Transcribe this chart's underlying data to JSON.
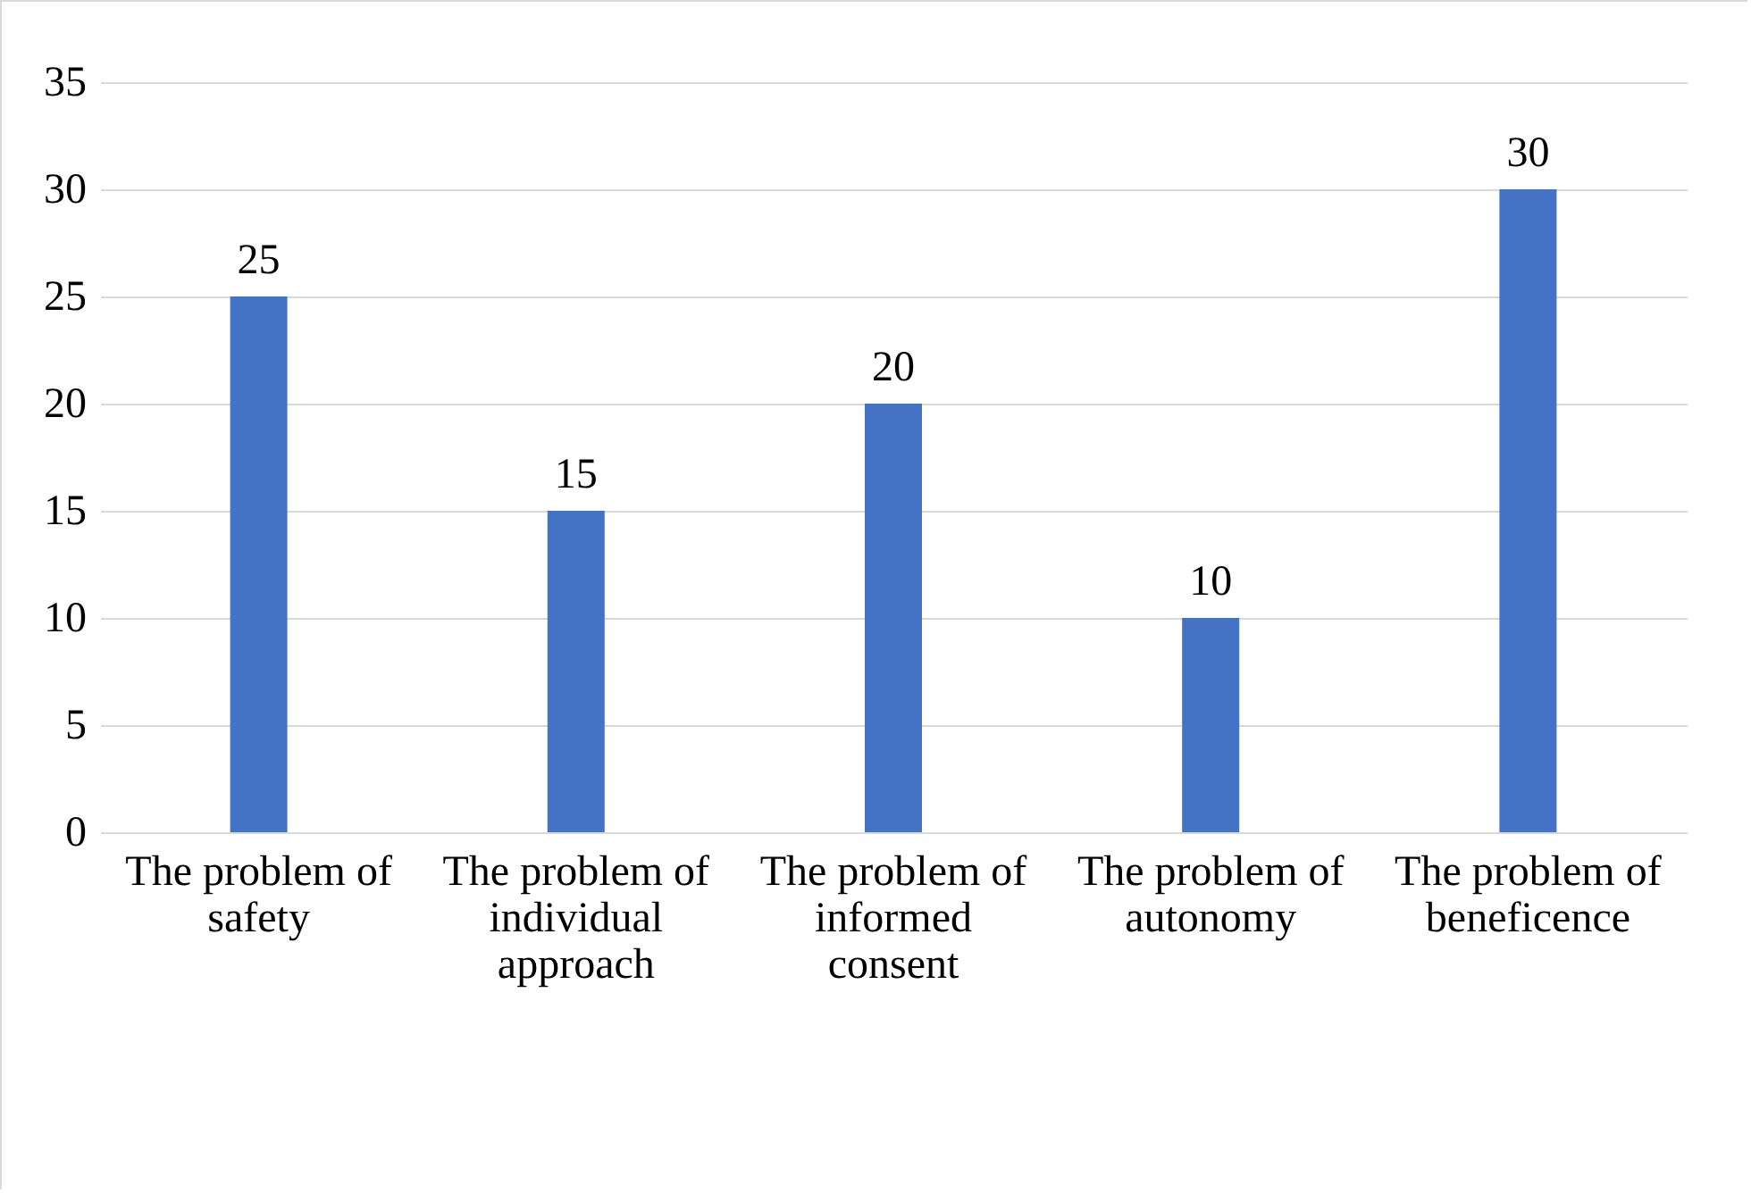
{
  "chart_data": {
    "type": "bar",
    "categories": [
      "The problem of safety",
      "The problem of individual approach",
      "The problem of informed consent",
      "The problem of autonomy",
      "The problem of beneficence"
    ],
    "values": [
      25,
      15,
      20,
      10,
      30
    ],
    "color": "#4472c4",
    "ylim": [
      0,
      35
    ],
    "yticks": [
      0,
      5,
      10,
      15,
      20,
      25,
      30,
      35
    ],
    "grid": true,
    "data_labels": true
  }
}
